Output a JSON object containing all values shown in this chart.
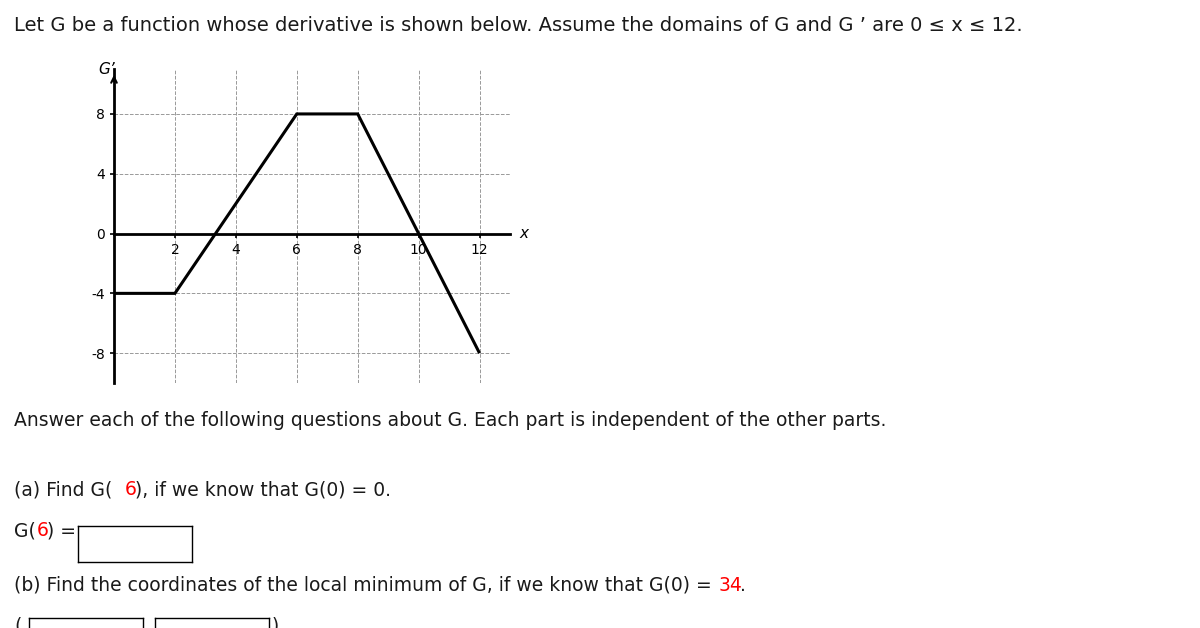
{
  "title_text": "Let G be a function whose derivative is shown below. Assume the domains of G and G ’ are 0 ≤ x ≤ 12.",
  "graph_ylabel": "G’",
  "graph_xlabel": "x",
  "gp_x": [
    0,
    2,
    6,
    8,
    10,
    12
  ],
  "gp_y": [
    -4,
    -4,
    8,
    8,
    0,
    -8
  ],
  "xlim": [
    0,
    13
  ],
  "ylim": [
    -10,
    11
  ],
  "xticks": [
    2,
    4,
    6,
    8,
    10,
    12
  ],
  "yticks": [
    -8,
    -4,
    0,
    4,
    8
  ],
  "line_color": "#000000",
  "line_width": 2.2,
  "grid_color": "#999999",
  "grid_style": "--",
  "background": "#ffffff",
  "highlight_color": "#ff0000",
  "text_color": "#1a1a1a",
  "font_size_title": 14,
  "font_size_body": 13.5,
  "font_size_tick": 10
}
